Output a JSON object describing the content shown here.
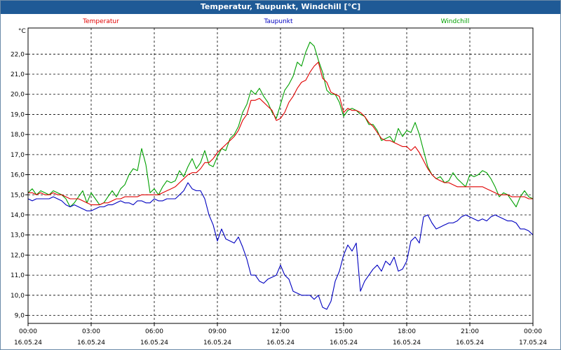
{
  "chart_data": {
    "type": "line",
    "title": "Temperatur, Taupunkt, Windchill [°C]",
    "ylabel": "°C",
    "ylim": [
      8.6,
      23.3
    ],
    "grid": true,
    "legend": "top",
    "yticks": [
      9.0,
      10.0,
      11.0,
      12.0,
      13.0,
      14.0,
      15.0,
      16.0,
      17.0,
      18.0,
      19.0,
      20.0,
      21.0,
      22.0
    ],
    "ytick_labels": [
      "9,0",
      "10,0",
      "11,0",
      "12,0",
      "13,0",
      "14,0",
      "15,0",
      "16,0",
      "17,0",
      "18,0",
      "19,0",
      "20,0",
      "21,0",
      "22,0"
    ],
    "xticks": [
      {
        "h": 0,
        "time": "00:00",
        "date": "16.05.24"
      },
      {
        "h": 3,
        "time": "03:00",
        "date": "16.05.24"
      },
      {
        "h": 6,
        "time": "06:00",
        "date": "16.05.24"
      },
      {
        "h": 9,
        "time": "09:00",
        "date": "16.05.24"
      },
      {
        "h": 12,
        "time": "12:00",
        "date": "16.05.24"
      },
      {
        "h": 15,
        "time": "15:00",
        "date": "16.05.24"
      },
      {
        "h": 18,
        "time": "18:00",
        "date": "16.05.24"
      },
      {
        "h": 21,
        "time": "21:00",
        "date": "16.05.24"
      },
      {
        "h": 24,
        "time": "00:00",
        "date": "17.05.24"
      }
    ],
    "xlim": [
      0,
      24
    ],
    "series": [
      {
        "name": "Windchill",
        "color": "#00a000",
        "x": [
          0,
          0.2,
          0.4,
          0.6,
          0.8,
          1.0,
          1.2,
          1.4,
          1.6,
          1.8,
          2.0,
          2.2,
          2.4,
          2.6,
          2.8,
          3.0,
          3.2,
          3.4,
          3.6,
          3.8,
          4.0,
          4.2,
          4.4,
          4.6,
          4.8,
          5.0,
          5.2,
          5.4,
          5.6,
          5.8,
          6.0,
          6.2,
          6.4,
          6.6,
          6.8,
          7.0,
          7.2,
          7.4,
          7.6,
          7.8,
          8.0,
          8.2,
          8.4,
          8.6,
          8.8,
          9.0,
          9.2,
          9.4,
          9.6,
          9.8,
          10.0,
          10.2,
          10.4,
          10.6,
          10.8,
          11.0,
          11.2,
          11.4,
          11.6,
          11.8,
          12.0,
          12.2,
          12.4,
          12.6,
          12.8,
          13.0,
          13.2,
          13.4,
          13.6,
          13.8,
          14.0,
          14.2,
          14.4,
          14.6,
          14.8,
          15.0,
          15.2,
          15.4,
          15.6,
          15.8,
          16.0,
          16.2,
          16.4,
          16.6,
          16.8,
          17.0,
          17.2,
          17.4,
          17.6,
          17.8,
          18.0,
          18.2,
          18.4,
          18.6,
          18.8,
          19.0,
          19.2,
          19.4,
          19.6,
          19.8,
          20.0,
          20.2,
          20.4,
          20.6,
          20.8,
          21.0,
          21.2,
          21.4,
          21.6,
          21.8,
          22.0,
          22.2,
          22.4,
          22.6,
          22.8,
          23.0,
          23.2,
          23.4,
          23.6,
          23.8,
          24.0
        ],
        "y": [
          15.1,
          15.3,
          15.0,
          15.2,
          15.1,
          15.0,
          15.2,
          15.1,
          15.0,
          14.8,
          14.4,
          14.6,
          14.9,
          15.2,
          14.6,
          15.1,
          14.8,
          14.5,
          14.6,
          14.9,
          15.2,
          14.9,
          15.3,
          15.5,
          16.0,
          16.3,
          16.2,
          17.3,
          16.5,
          15.1,
          15.3,
          15.0,
          15.4,
          15.7,
          15.6,
          15.7,
          16.2,
          15.9,
          16.4,
          16.8,
          16.3,
          16.6,
          17.2,
          16.5,
          16.4,
          16.9,
          17.3,
          17.2,
          17.8,
          18.0,
          18.4,
          19.1,
          19.5,
          20.2,
          20.0,
          20.3,
          19.9,
          19.6,
          19.1,
          18.8,
          19.5,
          20.2,
          20.5,
          20.9,
          21.6,
          21.4,
          22.1,
          22.6,
          22.4,
          21.7,
          21.1,
          20.2,
          20.0,
          20.0,
          19.6,
          18.9,
          19.2,
          19.3,
          19.2,
          19.0,
          18.9,
          18.5,
          18.5,
          18.2,
          17.7,
          17.8,
          17.9,
          17.6,
          18.3,
          17.9,
          18.2,
          18.1,
          18.6,
          18.0,
          17.2,
          16.4,
          16.0,
          15.8,
          15.9,
          15.6,
          15.7,
          16.1,
          15.8,
          15.6,
          15.4,
          16.0,
          15.9,
          16.0,
          16.2,
          16.1,
          15.8,
          15.4,
          14.9,
          15.1,
          15.0,
          14.7,
          14.4,
          14.9,
          15.2,
          14.9,
          14.8
        ]
      },
      {
        "name": "Temperatur",
        "color": "#e00000",
        "x": [
          0,
          0.2,
          0.4,
          0.6,
          0.8,
          1.0,
          1.2,
          1.4,
          1.6,
          1.8,
          2.0,
          2.2,
          2.4,
          2.6,
          2.8,
          3.0,
          3.2,
          3.4,
          3.6,
          3.8,
          4.0,
          4.2,
          4.4,
          4.6,
          4.8,
          5.0,
          5.2,
          5.4,
          5.6,
          5.8,
          6.0,
          6.2,
          6.4,
          6.6,
          6.8,
          7.0,
          7.2,
          7.4,
          7.6,
          7.8,
          8.0,
          8.2,
          8.4,
          8.6,
          8.8,
          9.0,
          9.2,
          9.4,
          9.6,
          9.8,
          10.0,
          10.2,
          10.4,
          10.6,
          10.8,
          11.0,
          11.2,
          11.4,
          11.6,
          11.8,
          12.0,
          12.2,
          12.4,
          12.6,
          12.8,
          13.0,
          13.2,
          13.4,
          13.6,
          13.8,
          14.0,
          14.2,
          14.4,
          14.6,
          14.8,
          15.0,
          15.2,
          15.4,
          15.6,
          15.8,
          16.0,
          16.2,
          16.4,
          16.6,
          16.8,
          17.0,
          17.2,
          17.4,
          17.6,
          17.8,
          18.0,
          18.2,
          18.4,
          18.6,
          18.8,
          19.0,
          19.2,
          19.4,
          19.6,
          19.8,
          20.0,
          20.2,
          20.4,
          20.6,
          20.8,
          21.0,
          21.2,
          21.4,
          21.6,
          21.8,
          22.0,
          22.2,
          22.4,
          22.6,
          22.8,
          23.0,
          23.2,
          23.4,
          23.6,
          23.8,
          24.0
        ],
        "y": [
          15.1,
          15.1,
          15.0,
          15.1,
          15.0,
          15.0,
          15.1,
          15.0,
          15.0,
          14.9,
          14.8,
          14.8,
          14.8,
          14.7,
          14.6,
          14.5,
          14.5,
          14.5,
          14.6,
          14.6,
          14.7,
          14.8,
          14.8,
          14.9,
          14.9,
          14.9,
          14.9,
          15.0,
          15.0,
          15.0,
          15.0,
          15.0,
          15.1,
          15.2,
          15.3,
          15.4,
          15.6,
          15.8,
          16.0,
          16.1,
          16.1,
          16.3,
          16.6,
          16.6,
          16.8,
          17.1,
          17.3,
          17.5,
          17.7,
          17.9,
          18.2,
          18.7,
          19.0,
          19.7,
          19.7,
          19.8,
          19.6,
          19.4,
          19.2,
          18.7,
          18.8,
          19.1,
          19.6,
          19.9,
          20.3,
          20.6,
          20.7,
          21.1,
          21.4,
          21.6,
          20.8,
          20.6,
          20.1,
          20.0,
          19.9,
          19.1,
          19.3,
          19.2,
          19.2,
          19.1,
          18.9,
          18.6,
          18.4,
          18.1,
          17.8,
          17.7,
          17.7,
          17.6,
          17.5,
          17.4,
          17.4,
          17.2,
          17.4,
          17.1,
          16.7,
          16.3,
          16.0,
          15.8,
          15.7,
          15.6,
          15.6,
          15.5,
          15.4,
          15.4,
          15.4,
          15.4,
          15.4,
          15.4,
          15.4,
          15.3,
          15.2,
          15.1,
          15.0,
          15.0,
          15.0,
          14.9,
          14.9,
          14.9,
          14.9,
          14.8,
          14.8
        ]
      },
      {
        "name": "Taupunkt",
        "color": "#0000c0",
        "x": [
          0,
          0.2,
          0.4,
          0.6,
          0.8,
          1.0,
          1.2,
          1.4,
          1.6,
          1.8,
          2.0,
          2.2,
          2.4,
          2.6,
          2.8,
          3.0,
          3.2,
          3.4,
          3.6,
          3.8,
          4.0,
          4.2,
          4.4,
          4.6,
          4.8,
          5.0,
          5.2,
          5.4,
          5.6,
          5.8,
          6.0,
          6.2,
          6.4,
          6.6,
          6.8,
          7.0,
          7.2,
          7.4,
          7.6,
          7.8,
          8.0,
          8.2,
          8.4,
          8.6,
          8.8,
          9.0,
          9.2,
          9.4,
          9.6,
          9.8,
          10.0,
          10.2,
          10.4,
          10.6,
          10.8,
          11.0,
          11.2,
          11.4,
          11.6,
          11.8,
          12.0,
          12.2,
          12.4,
          12.6,
          12.8,
          13.0,
          13.2,
          13.4,
          13.6,
          13.8,
          14.0,
          14.2,
          14.4,
          14.6,
          14.8,
          15.0,
          15.2,
          15.4,
          15.6,
          15.8,
          16.0,
          16.2,
          16.4,
          16.6,
          16.8,
          17.0,
          17.2,
          17.4,
          17.6,
          17.8,
          18.0,
          18.2,
          18.4,
          18.6,
          18.8,
          19.0,
          19.2,
          19.4,
          19.6,
          19.8,
          20.0,
          20.2,
          20.4,
          20.6,
          20.8,
          21.0,
          21.2,
          21.4,
          21.6,
          21.8,
          22.0,
          22.2,
          22.4,
          22.6,
          22.8,
          23.0,
          23.2,
          23.4,
          23.6,
          23.8,
          24.0
        ],
        "y": [
          14.8,
          14.7,
          14.8,
          14.8,
          14.8,
          14.8,
          14.9,
          14.8,
          14.7,
          14.5,
          14.4,
          14.5,
          14.4,
          14.3,
          14.2,
          14.2,
          14.3,
          14.4,
          14.4,
          14.5,
          14.5,
          14.6,
          14.7,
          14.6,
          14.6,
          14.5,
          14.7,
          14.7,
          14.6,
          14.6,
          14.8,
          14.7,
          14.7,
          14.8,
          14.8,
          14.8,
          15.0,
          15.2,
          15.6,
          15.3,
          15.2,
          15.2,
          14.8,
          14.0,
          13.5,
          12.7,
          13.3,
          12.8,
          12.7,
          12.6,
          12.9,
          12.4,
          11.8,
          11.0,
          11.0,
          10.7,
          10.6,
          10.8,
          10.9,
          11.0,
          11.5,
          11.0,
          10.8,
          10.2,
          10.1,
          10.0,
          10.0,
          10.0,
          9.8,
          10.0,
          9.4,
          9.3,
          9.7,
          10.7,
          11.2,
          12.0,
          12.5,
          12.2,
          12.6,
          10.2,
          10.7,
          11.0,
          11.3,
          11.5,
          11.2,
          11.7,
          11.5,
          11.9,
          11.2,
          11.3,
          11.7,
          12.7,
          12.9,
          12.6,
          13.9,
          14.0,
          13.6,
          13.3,
          13.4,
          13.5,
          13.6,
          13.6,
          13.7,
          13.9,
          14.0,
          13.9,
          13.8,
          13.7,
          13.8,
          13.7,
          13.9,
          14.0,
          13.9,
          13.8,
          13.7,
          13.7,
          13.6,
          13.3,
          13.3,
          13.2,
          13.0
        ]
      }
    ]
  }
}
